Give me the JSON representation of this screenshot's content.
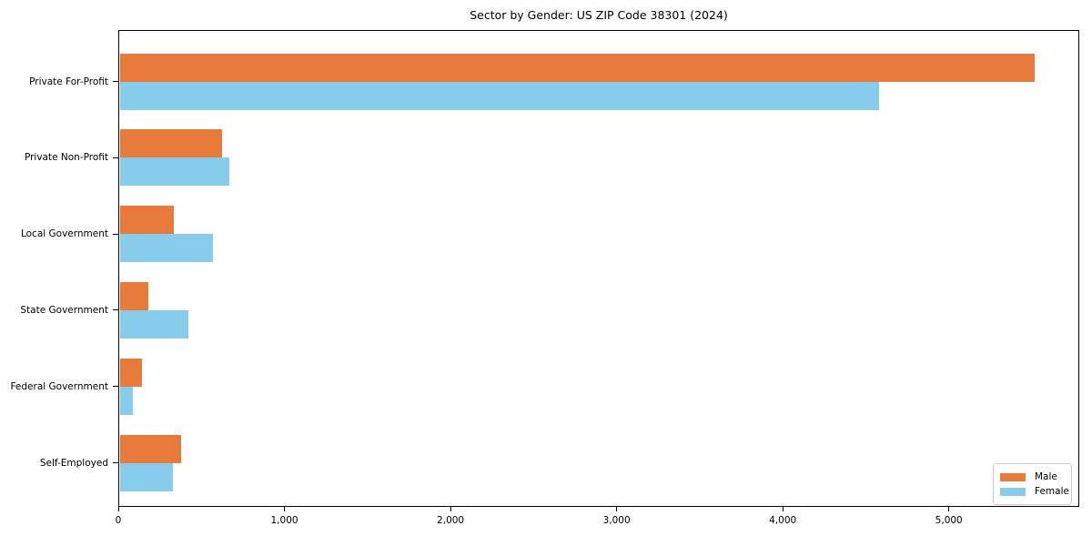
{
  "chart_data": {
    "type": "bar",
    "orientation": "horizontal",
    "title": "Sector by Gender: US ZIP Code 38301 (2024)",
    "categories": [
      "Private For-Profit",
      "Private Non-Profit",
      "Local Government",
      "State Government",
      "Federal Government",
      "Self-Employed"
    ],
    "series": [
      {
        "name": "Male",
        "color": "#e87a3c",
        "values": [
          5510,
          615,
          325,
          170,
          135,
          370
        ]
      },
      {
        "name": "Female",
        "color": "#87cdeb",
        "values": [
          4570,
          660,
          560,
          415,
          80,
          320
        ]
      }
    ],
    "xlabel": "",
    "ylabel": "",
    "xlim": [
      0,
      5785
    ],
    "xticks": [
      0,
      1000,
      2000,
      3000,
      4000,
      5000
    ],
    "xtick_labels": [
      "0",
      "1,000",
      "2,000",
      "3,000",
      "4,000",
      "5,000"
    ],
    "grid": false,
    "legend_position": "lower right",
    "colors": {
      "axis": "#000000",
      "background": "#ffffff",
      "legend_border": "#cccccc"
    }
  }
}
